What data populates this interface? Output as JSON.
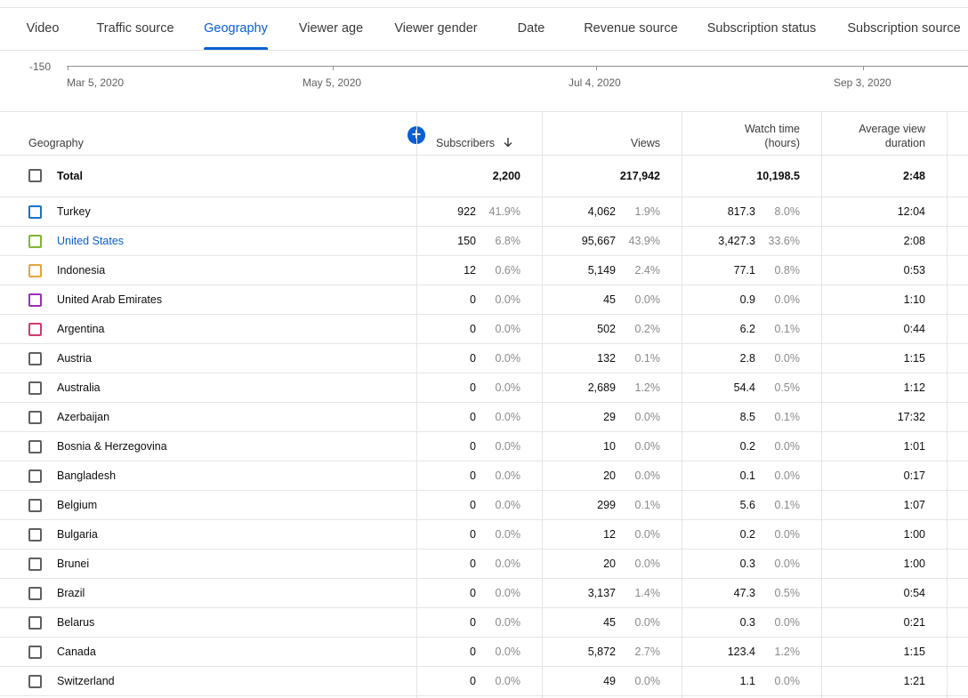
{
  "tabs": [
    {
      "label": "Video",
      "active": false
    },
    {
      "label": "Traffic source",
      "active": false
    },
    {
      "label": "Geography",
      "active": true
    },
    {
      "label": "Viewer age",
      "active": false
    },
    {
      "label": "Viewer gender",
      "active": false
    },
    {
      "label": "Date",
      "active": false
    },
    {
      "label": "Revenue source",
      "active": false
    },
    {
      "label": "Subscription status",
      "active": false
    },
    {
      "label": "Subscription source",
      "active": false
    }
  ],
  "chart": {
    "y_tick": "-150",
    "x_ticks": [
      "Mar 5, 2020",
      "May 5, 2020",
      "Jul 4, 2020",
      "Sep 3, 2020"
    ]
  },
  "colors": {
    "accent": "#065fd4"
  },
  "table": {
    "headers": {
      "geography": "Geography",
      "subscribers": "Subscribers",
      "views": "Views",
      "watch_time_1": "Watch time",
      "watch_time_2": "(hours)",
      "avd_1": "Average view",
      "avd_2": "duration"
    },
    "sort_icon": "arrow-down-icon",
    "total": {
      "label": "Total",
      "subscribers": "2,200",
      "views": "217,942",
      "watch_time": "10,198.5",
      "avd": "2:48"
    },
    "rows": [
      {
        "name": "Turkey",
        "subs": "922",
        "subs_pct": "41.9%",
        "views": "4,062",
        "views_pct": "1.9%",
        "wt": "817.3",
        "wt_pct": "8.0%",
        "avd": "12:04",
        "color": "#1a73c7",
        "link": false
      },
      {
        "name": "United States",
        "subs": "150",
        "subs_pct": "6.8%",
        "views": "95,667",
        "views_pct": "43.9%",
        "wt": "3,427.3",
        "wt_pct": "33.6%",
        "avd": "2:08",
        "color": "#7cb82f",
        "link": true
      },
      {
        "name": "Indonesia",
        "subs": "12",
        "subs_pct": "0.6%",
        "views": "5,149",
        "views_pct": "2.4%",
        "wt": "77.1",
        "wt_pct": "0.8%",
        "avd": "0:53",
        "color": "#e8a33c",
        "link": false
      },
      {
        "name": "United Arab Emirates",
        "subs": "0",
        "subs_pct": "0.0%",
        "views": "45",
        "views_pct": "0.0%",
        "wt": "0.9",
        "wt_pct": "0.0%",
        "avd": "1:10",
        "color": "#9b30b5",
        "link": false
      },
      {
        "name": "Argentina",
        "subs": "0",
        "subs_pct": "0.0%",
        "views": "502",
        "views_pct": "0.2%",
        "wt": "6.2",
        "wt_pct": "0.1%",
        "avd": "0:44",
        "color": "#d03a6e",
        "link": false
      },
      {
        "name": "Austria",
        "subs": "0",
        "subs_pct": "0.0%",
        "views": "132",
        "views_pct": "0.1%",
        "wt": "2.8",
        "wt_pct": "0.0%",
        "avd": "1:15",
        "color": "#606060",
        "link": false
      },
      {
        "name": "Australia",
        "subs": "0",
        "subs_pct": "0.0%",
        "views": "2,689",
        "views_pct": "1.2%",
        "wt": "54.4",
        "wt_pct": "0.5%",
        "avd": "1:12",
        "color": "#606060",
        "link": false
      },
      {
        "name": "Azerbaijan",
        "subs": "0",
        "subs_pct": "0.0%",
        "views": "29",
        "views_pct": "0.0%",
        "wt": "8.5",
        "wt_pct": "0.1%",
        "avd": "17:32",
        "color": "#606060",
        "link": false
      },
      {
        "name": "Bosnia & Herzegovina",
        "subs": "0",
        "subs_pct": "0.0%",
        "views": "10",
        "views_pct": "0.0%",
        "wt": "0.2",
        "wt_pct": "0.0%",
        "avd": "1:01",
        "color": "#606060",
        "link": false
      },
      {
        "name": "Bangladesh",
        "subs": "0",
        "subs_pct": "0.0%",
        "views": "20",
        "views_pct": "0.0%",
        "wt": "0.1",
        "wt_pct": "0.0%",
        "avd": "0:17",
        "color": "#606060",
        "link": false
      },
      {
        "name": "Belgium",
        "subs": "0",
        "subs_pct": "0.0%",
        "views": "299",
        "views_pct": "0.1%",
        "wt": "5.6",
        "wt_pct": "0.1%",
        "avd": "1:07",
        "color": "#606060",
        "link": false
      },
      {
        "name": "Bulgaria",
        "subs": "0",
        "subs_pct": "0.0%",
        "views": "12",
        "views_pct": "0.0%",
        "wt": "0.2",
        "wt_pct": "0.0%",
        "avd": "1:00",
        "color": "#606060",
        "link": false
      },
      {
        "name": "Brunei",
        "subs": "0",
        "subs_pct": "0.0%",
        "views": "20",
        "views_pct": "0.0%",
        "wt": "0.3",
        "wt_pct": "0.0%",
        "avd": "1:00",
        "color": "#606060",
        "link": false
      },
      {
        "name": "Brazil",
        "subs": "0",
        "subs_pct": "0.0%",
        "views": "3,137",
        "views_pct": "1.4%",
        "wt": "47.3",
        "wt_pct": "0.5%",
        "avd": "0:54",
        "color": "#606060",
        "link": false
      },
      {
        "name": "Belarus",
        "subs": "0",
        "subs_pct": "0.0%",
        "views": "45",
        "views_pct": "0.0%",
        "wt": "0.3",
        "wt_pct": "0.0%",
        "avd": "0:21",
        "color": "#606060",
        "link": false
      },
      {
        "name": "Canada",
        "subs": "0",
        "subs_pct": "0.0%",
        "views": "5,872",
        "views_pct": "2.7%",
        "wt": "123.4",
        "wt_pct": "1.2%",
        "avd": "1:15",
        "color": "#606060",
        "link": false
      },
      {
        "name": "Switzerland",
        "subs": "0",
        "subs_pct": "0.0%",
        "views": "49",
        "views_pct": "0.0%",
        "wt": "1.1",
        "wt_pct": "0.0%",
        "avd": "1:21",
        "color": "#606060",
        "link": false
      }
    ]
  }
}
